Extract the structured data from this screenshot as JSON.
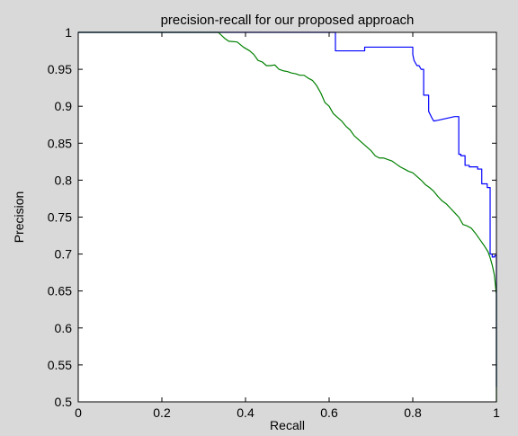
{
  "chart_data": {
    "type": "line",
    "title": "precision-recall for our proposed approach",
    "xlabel": "Recall",
    "ylabel": "Precision",
    "xlim": [
      0,
      1
    ],
    "ylim": [
      0.5,
      1
    ],
    "xticks": [
      0,
      0.2,
      0.4,
      0.6,
      0.8,
      1
    ],
    "xtick_labels": [
      "0",
      "0.2",
      "0.4",
      "0.6",
      "0.8",
      "1"
    ],
    "yticks": [
      0.5,
      0.55,
      0.6,
      0.65,
      0.7,
      0.75,
      0.8,
      0.85,
      0.9,
      0.95,
      1
    ],
    "ytick_labels": [
      "0.5",
      "0.55",
      "0.6",
      "0.65",
      "0.7",
      "0.75",
      "0.8",
      "0.85",
      "0.9",
      "0.95",
      "1"
    ],
    "grid": false,
    "series": [
      {
        "color": "#0000ff",
        "x": [
          0,
          0.615,
          0.615,
          0.685,
          0.685,
          0.8,
          0.8,
          0.803,
          0.81,
          0.815,
          0.82,
          0.826,
          0.826,
          0.838,
          0.838,
          0.845,
          0.85,
          0.86,
          0.9,
          0.91,
          0.91,
          0.915,
          0.915,
          0.925,
          0.925,
          0.935,
          0.935,
          0.955,
          0.955,
          0.965,
          0.965,
          0.978,
          0.978,
          0.985,
          0.985,
          0.99,
          0.99,
          0.996,
          0.996,
          1,
          1
        ],
        "y": [
          1,
          1,
          0.975,
          0.975,
          0.98,
          0.98,
          0.97,
          0.962,
          0.955,
          0.955,
          0.95,
          0.95,
          0.915,
          0.915,
          0.893,
          0.885,
          0.88,
          0.881,
          0.886,
          0.886,
          0.835,
          0.835,
          0.833,
          0.833,
          0.82,
          0.82,
          0.818,
          0.818,
          0.815,
          0.815,
          0.795,
          0.795,
          0.79,
          0.79,
          0.7,
          0.7,
          0.696,
          0.696,
          0.698,
          0.698,
          0.52
        ]
      },
      {
        "color": "#008000",
        "x": [
          0,
          0.335,
          0.35,
          0.36,
          0.38,
          0.395,
          0.41,
          0.42,
          0.43,
          0.44,
          0.45,
          0.46,
          0.47,
          0.48,
          0.49,
          0.5,
          0.51,
          0.52,
          0.53,
          0.54,
          0.55,
          0.56,
          0.57,
          0.58,
          0.59,
          0.6,
          0.61,
          0.62,
          0.63,
          0.64,
          0.65,
          0.66,
          0.67,
          0.68,
          0.69,
          0.7,
          0.71,
          0.72,
          0.73,
          0.74,
          0.75,
          0.76,
          0.77,
          0.78,
          0.79,
          0.8,
          0.81,
          0.82,
          0.83,
          0.84,
          0.85,
          0.86,
          0.87,
          0.88,
          0.89,
          0.9,
          0.91,
          0.92,
          0.93,
          0.94,
          0.95,
          0.96,
          0.97,
          0.98,
          0.985,
          0.99,
          0.995,
          1,
          1
        ],
        "y": [
          1,
          1,
          0.992,
          0.988,
          0.987,
          0.98,
          0.975,
          0.97,
          0.962,
          0.96,
          0.955,
          0.955,
          0.956,
          0.95,
          0.948,
          0.947,
          0.945,
          0.944,
          0.942,
          0.942,
          0.938,
          0.935,
          0.928,
          0.918,
          0.905,
          0.9,
          0.89,
          0.885,
          0.88,
          0.873,
          0.868,
          0.86,
          0.855,
          0.85,
          0.845,
          0.84,
          0.833,
          0.83,
          0.83,
          0.828,
          0.826,
          0.822,
          0.818,
          0.815,
          0.812,
          0.81,
          0.805,
          0.8,
          0.794,
          0.79,
          0.785,
          0.778,
          0.772,
          0.768,
          0.762,
          0.756,
          0.75,
          0.74,
          0.738,
          0.735,
          0.728,
          0.72,
          0.712,
          0.703,
          0.695,
          0.685,
          0.672,
          0.645,
          0.5
        ]
      }
    ]
  }
}
